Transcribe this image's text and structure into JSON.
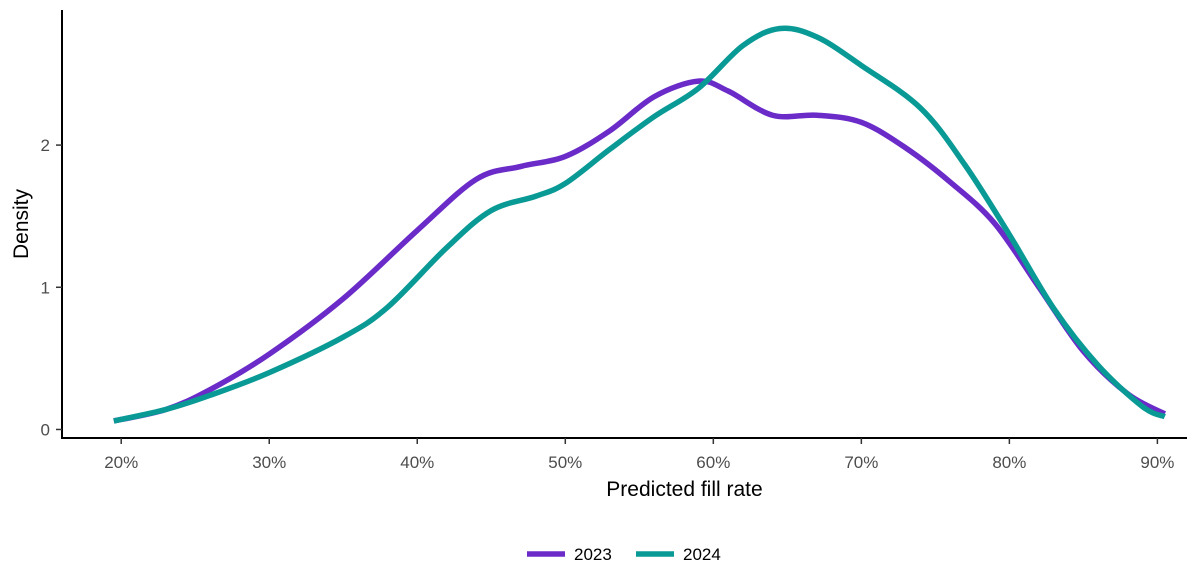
{
  "chart_data": {
    "type": "line",
    "title": "",
    "xlabel": "Predicted fill rate",
    "ylabel": "Density",
    "xlim": [
      0.16,
      0.92
    ],
    "ylim": [
      -0.06,
      2.95
    ],
    "x_ticks": [
      0.2,
      0.3,
      0.4,
      0.5,
      0.6,
      0.7,
      0.8,
      0.9
    ],
    "x_tick_labels": [
      "20%",
      "30%",
      "40%",
      "50%",
      "60%",
      "70%",
      "80%",
      "90%"
    ],
    "y_ticks": [
      0,
      1,
      2
    ],
    "y_tick_labels": [
      "0",
      "1",
      "2"
    ],
    "grid": false,
    "legend_position": "bottom",
    "series": [
      {
        "name": "2023",
        "color": "#6a2bc9",
        "x": [
          0.195,
          0.23,
          0.26,
          0.3,
          0.35,
          0.4,
          0.44,
          0.47,
          0.5,
          0.53,
          0.56,
          0.59,
          0.61,
          0.64,
          0.67,
          0.7,
          0.73,
          0.76,
          0.79,
          0.82,
          0.85,
          0.88,
          0.905
        ],
        "y": [
          0.06,
          0.14,
          0.28,
          0.53,
          0.92,
          1.4,
          1.76,
          1.85,
          1.92,
          2.1,
          2.34,
          2.45,
          2.38,
          2.21,
          2.21,
          2.16,
          1.98,
          1.74,
          1.45,
          1.0,
          0.55,
          0.25,
          0.11
        ]
      },
      {
        "name": "2024",
        "color": "#0a9a96",
        "x": [
          0.195,
          0.23,
          0.26,
          0.3,
          0.35,
          0.38,
          0.42,
          0.45,
          0.48,
          0.5,
          0.53,
          0.56,
          0.59,
          0.62,
          0.645,
          0.67,
          0.7,
          0.74,
          0.77,
          0.8,
          0.83,
          0.86,
          0.89,
          0.905
        ],
        "y": [
          0.06,
          0.14,
          0.24,
          0.4,
          0.65,
          0.86,
          1.28,
          1.54,
          1.64,
          1.73,
          1.97,
          2.2,
          2.4,
          2.7,
          2.82,
          2.76,
          2.56,
          2.26,
          1.86,
          1.37,
          0.85,
          0.45,
          0.16,
          0.09
        ]
      }
    ]
  }
}
